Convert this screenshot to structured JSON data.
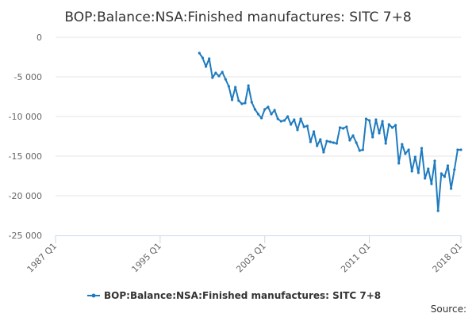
{
  "chart_data": {
    "type": "line",
    "title": "BOP:Balance:NSA:Finished manufactures: SITC 7+8",
    "xlabel": "",
    "ylabel": "",
    "x_tick_labels": [
      "1987 Q1",
      "1995 Q1",
      "2003 Q1",
      "2011 Q1",
      "2018 Q1"
    ],
    "x_tick_values": [
      1987.0,
      1995.0,
      2003.0,
      2011.0,
      2018.0
    ],
    "xlim": [
      1987.0,
      2018.0
    ],
    "y_tick_labels": [
      "0",
      "-5 000",
      "-10 000",
      "-15 000",
      "-20 000",
      "-25 000"
    ],
    "y_tick_values": [
      0,
      -5000,
      -10000,
      -15000,
      -20000,
      -25000
    ],
    "ylim": [
      -25000,
      0
    ],
    "grid": true,
    "legend_position": "bottom",
    "series": [
      {
        "name": "BOP:Balance:NSA:Finished manufactures: SITC 7+8",
        "color": "#1f7bbf",
        "x": [
          1998.0,
          1998.25,
          1998.5,
          1998.75,
          1999.0,
          1999.25,
          1999.5,
          1999.75,
          2000.0,
          2000.25,
          2000.5,
          2000.75,
          2001.0,
          2001.25,
          2001.5,
          2001.75,
          2002.0,
          2002.25,
          2002.5,
          2002.75,
          2003.0,
          2003.25,
          2003.5,
          2003.75,
          2004.0,
          2004.25,
          2004.5,
          2004.75,
          2005.0,
          2005.25,
          2005.5,
          2005.75,
          2006.0,
          2006.25,
          2006.5,
          2006.75,
          2007.0,
          2007.25,
          2007.5,
          2007.75,
          2008.0,
          2008.25,
          2008.5,
          2008.75,
          2009.0,
          2009.25,
          2009.5,
          2009.75,
          2010.0,
          2010.25,
          2010.5,
          2010.75,
          2011.0,
          2011.25,
          2011.5,
          2011.75,
          2012.0,
          2012.25,
          2012.5,
          2012.75,
          2013.0,
          2013.25,
          2013.5,
          2013.75,
          2014.0,
          2014.25,
          2014.5,
          2014.75,
          2015.0,
          2015.25,
          2015.5,
          2015.75,
          2016.0,
          2016.25,
          2016.5,
          2016.75,
          2017.0,
          2017.25,
          2017.5,
          2017.75,
          2018.0
        ],
        "values": [
          -2000,
          -2600,
          -3700,
          -2700,
          -5100,
          -4500,
          -4900,
          -4400,
          -5300,
          -6200,
          -7900,
          -6300,
          -8000,
          -8400,
          -8300,
          -6100,
          -8200,
          -9100,
          -9700,
          -10200,
          -9100,
          -8800,
          -9700,
          -9200,
          -10300,
          -10600,
          -10500,
          -10000,
          -11000,
          -10400,
          -11700,
          -10300,
          -11300,
          -11200,
          -13200,
          -11900,
          -13700,
          -12900,
          -14500,
          -13100,
          -13200,
          -13300,
          -13400,
          -11400,
          -11500,
          -11300,
          -13000,
          -12400,
          -13300,
          -14300,
          -14200,
          -10300,
          -10500,
          -12600,
          -10400,
          -12100,
          -10600,
          -13400,
          -11000,
          -11400,
          -11100,
          -15900,
          -13500,
          -14700,
          -14200,
          -16900,
          -15100,
          -17100,
          -14000,
          -17800,
          -16600,
          -18500,
          -15600,
          -21900,
          -17200,
          -17600,
          -16200,
          -19100,
          -16700,
          -14200,
          -14200
        ]
      }
    ]
  },
  "source_label": "Source:"
}
